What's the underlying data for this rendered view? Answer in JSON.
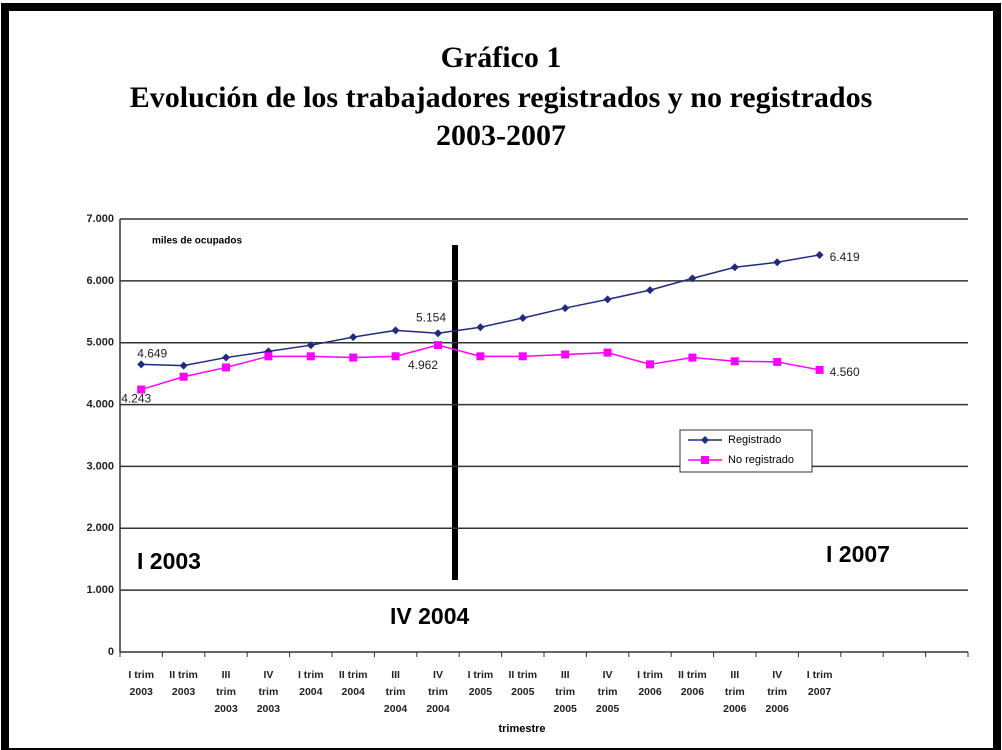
{
  "chart_data": {
    "type": "line",
    "title": [
      "Gráfico 1",
      "Evolución de los trabajadores registrados y no registrados",
      "2003-2007"
    ],
    "annotations": [
      "miles de ocupados",
      "I 2003",
      "I 2007",
      "IV 2004"
    ],
    "x_label": "trimestre",
    "categories": [
      [
        "I trim",
        "2003"
      ],
      [
        "II trim",
        "2003"
      ],
      [
        "III",
        "trim",
        "2003"
      ],
      [
        "IV",
        "trim",
        "2003"
      ],
      [
        "I trim",
        "2004"
      ],
      [
        "II trim",
        "2004"
      ],
      [
        "III",
        "trim",
        "2004"
      ],
      [
        "IV",
        "trim",
        "2004"
      ],
      [
        "I trim",
        "2005"
      ],
      [
        "II trim",
        "2005"
      ],
      [
        "III",
        "trim",
        "2005"
      ],
      [
        "IV",
        "trim",
        "2005"
      ],
      [
        "I trim",
        "2006"
      ],
      [
        "II trim",
        "2006"
      ],
      [
        "III",
        "trim",
        "2006"
      ],
      [
        "IV",
        "trim",
        "2006"
      ],
      [
        "I trim",
        "2007"
      ],
      null,
      null,
      null
    ],
    "series": [
      {
        "name": "Registrado",
        "color": "#1f2a80",
        "marker": "diamond",
        "values": [
          4649,
          4630,
          4760,
          4860,
          4960,
          5090,
          5200,
          5154,
          5250,
          5400,
          5560,
          5700,
          5850,
          6040,
          6220,
          6300,
          6419,
          null,
          null,
          null
        ],
        "value_labels": [
          "4.649",
          null,
          null,
          null,
          null,
          null,
          null,
          "5.154",
          null,
          null,
          null,
          null,
          null,
          null,
          null,
          null,
          "6.419",
          null,
          null,
          null
        ]
      },
      {
        "name": "No registrado",
        "color": "#ff00ff",
        "marker": "square",
        "values": [
          4243,
          4450,
          4600,
          4780,
          4780,
          4760,
          4780,
          4962,
          4780,
          4780,
          4810,
          4840,
          4650,
          4760,
          4700,
          4690,
          4560,
          null,
          null,
          null
        ],
        "value_labels": [
          "4.243",
          null,
          null,
          null,
          null,
          null,
          null,
          "4.962",
          null,
          null,
          null,
          null,
          null,
          null,
          null,
          null,
          "4.560",
          null,
          null,
          null
        ]
      }
    ],
    "ylim": [
      0,
      7000
    ],
    "yticks": [
      0,
      {
        "value": 1000,
        "label": "1.000"
      },
      {
        "value": 2000,
        "label": "2.000"
      },
      {
        "value": 3000,
        "label": "3.000"
      },
      {
        "value": 4000,
        "label": "4.000"
      },
      {
        "value": 5000,
        "label": "5.000"
      },
      {
        "value": 6000,
        "label": "6.000"
      },
      {
        "value": 7000,
        "label": "7.000"
      }
    ],
    "grid": true,
    "legend": "right"
  }
}
